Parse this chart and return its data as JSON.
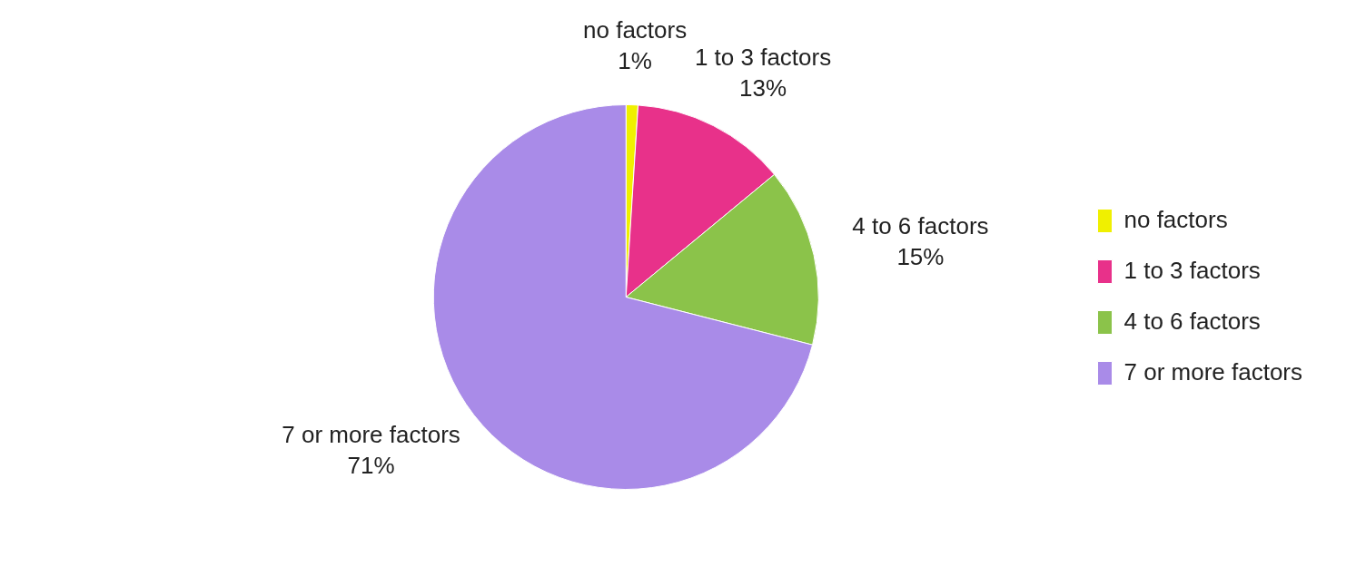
{
  "chart_data": {
    "type": "pie",
    "categories": [
      "no factors",
      "1 to 3 factors",
      "4 to 6 factors",
      "7 or more factors"
    ],
    "values": [
      1,
      13,
      15,
      71
    ],
    "colors": [
      "#f0f000",
      "#e8318a",
      "#8bc34a",
      "#a98be8"
    ],
    "value_labels": [
      "1%",
      "13%",
      "15%",
      "71%"
    ],
    "legend": "right"
  }
}
